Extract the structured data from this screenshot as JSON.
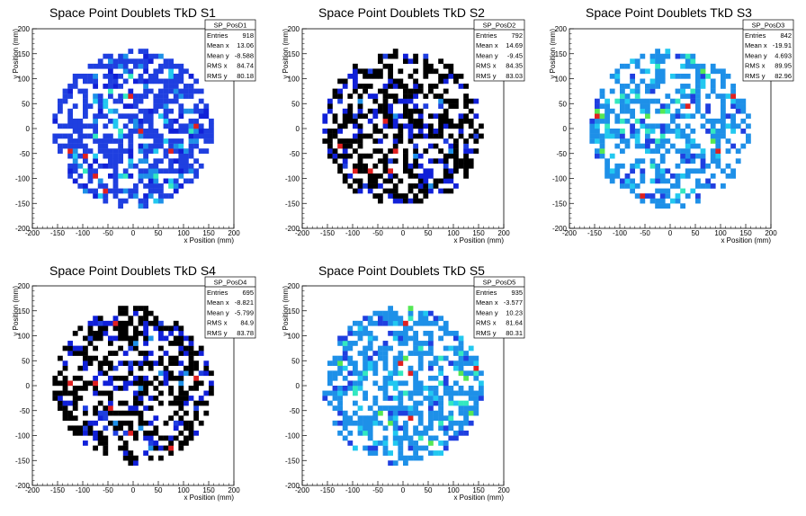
{
  "chart_data": [
    {
      "type": "heatmap",
      "title": "Space Point Doublets TkD S1",
      "xlabel": "x Position (mm)",
      "ylabel": "y Position (mm)",
      "xlim": [
        -200,
        200
      ],
      "ylim": [
        -200,
        200
      ],
      "ticks": [
        "-200",
        "-150",
        "-100",
        "-50",
        "0",
        "50",
        "100",
        "150",
        "200"
      ],
      "bin_size_mm": 10,
      "stats": {
        "name": "SP_PosD1",
        "entries": "918",
        "mean_x": "13.06",
        "mean_y": "-8.588",
        "rms_x": "84.74",
        "rms_y": "80.18"
      },
      "stat_labels": {
        "entries": "Entries",
        "mean_x": "Mean x",
        "mean_y": "Mean y",
        "rms_x": "RMS x",
        "rms_y": "RMS y"
      },
      "fill_fraction": 0.62,
      "dominant_color": "#1f3fe0",
      "seed": 11
    },
    {
      "type": "heatmap",
      "title": "Space Point Doublets TkD S2",
      "xlabel": "x Position (mm)",
      "ylabel": "y Position (mm)",
      "xlim": [
        -200,
        200
      ],
      "ylim": [
        -200,
        200
      ],
      "ticks": [
        "-200",
        "-150",
        "-100",
        "-50",
        "0",
        "50",
        "100",
        "150",
        "200"
      ],
      "bin_size_mm": 10,
      "stats": {
        "name": "SP_PosD2",
        "entries": "792",
        "mean_x": "14.69",
        "mean_y": "-9.45",
        "rms_x": "84.35",
        "rms_y": "83.03"
      },
      "stat_labels": {
        "entries": "Entries",
        "mean_x": "Mean x",
        "mean_y": "Mean y",
        "rms_x": "RMS x",
        "rms_y": "RMS y"
      },
      "fill_fraction": 0.55,
      "dominant_color": "#2255e8",
      "seed": 23
    },
    {
      "type": "heatmap",
      "title": "Space Point Doublets TkD S3",
      "xlabel": "x Position (mm)",
      "ylabel": "y Position (mm)",
      "xlim": [
        -200,
        200
      ],
      "ylim": [
        -200,
        200
      ],
      "ticks": [
        "-200",
        "-150",
        "-100",
        "-50",
        "0",
        "50",
        "100",
        "150",
        "200"
      ],
      "bin_size_mm": 10,
      "stats": {
        "name": "SP_PosD3",
        "entries": "842",
        "mean_x": "-19.91",
        "mean_y": "4.693",
        "rms_x": "89.95",
        "rms_y": "82.96"
      },
      "stat_labels": {
        "entries": "Entries",
        "mean_x": "Mean x",
        "mean_y": "Mean y",
        "rms_x": "RMS x",
        "rms_y": "RMS y"
      },
      "fill_fraction": 0.52,
      "dominant_color": "#1e90e8",
      "seed": 37
    },
    {
      "type": "heatmap",
      "title": "Space Point Doublets TkD S4",
      "xlabel": "x Position (mm)",
      "ylabel": "y Position (mm)",
      "xlim": [
        -200,
        200
      ],
      "ylim": [
        -200,
        200
      ],
      "ticks": [
        "-200",
        "-150",
        "-100",
        "-50",
        "0",
        "50",
        "100",
        "150",
        "200"
      ],
      "bin_size_mm": 10,
      "stats": {
        "name": "SP_PosD4",
        "entries": "695",
        "mean_x": "-8.821",
        "mean_y": "-5.799",
        "rms_x": "84.9",
        "rms_y": "83.78"
      },
      "stat_labels": {
        "entries": "Entries",
        "mean_x": "Mean x",
        "mean_y": "Mean y",
        "rms_x": "RMS x",
        "rms_y": "RMS y"
      },
      "fill_fraction": 0.5,
      "dominant_color": "#22b8e8",
      "seed": 53
    },
    {
      "type": "heatmap",
      "title": "Space Point Doublets TkD S5",
      "xlabel": "x Position (mm)",
      "ylabel": "y Position (mm)",
      "xlim": [
        -200,
        200
      ],
      "ylim": [
        -200,
        200
      ],
      "ticks": [
        "-200",
        "-150",
        "-100",
        "-50",
        "0",
        "50",
        "100",
        "150",
        "200"
      ],
      "bin_size_mm": 10,
      "stats": {
        "name": "SP_PosD5",
        "entries": "935",
        "mean_x": "-3.577",
        "mean_y": "10.23",
        "rms_x": "81.64",
        "rms_y": "80.31"
      },
      "stat_labels": {
        "entries": "Entries",
        "mean_x": "Mean x",
        "mean_y": "Mean y",
        "rms_x": "RMS x",
        "rms_y": "RMS y"
      },
      "fill_fraction": 0.6,
      "dominant_color": "#1e90e8",
      "seed": 71
    }
  ],
  "palette": [
    "#1020d8",
    "#1f3fe0",
    "#1e90e8",
    "#22c8f0",
    "#33e8c0",
    "#55e855",
    "#c8e830",
    "#f0a020",
    "#e02020"
  ]
}
